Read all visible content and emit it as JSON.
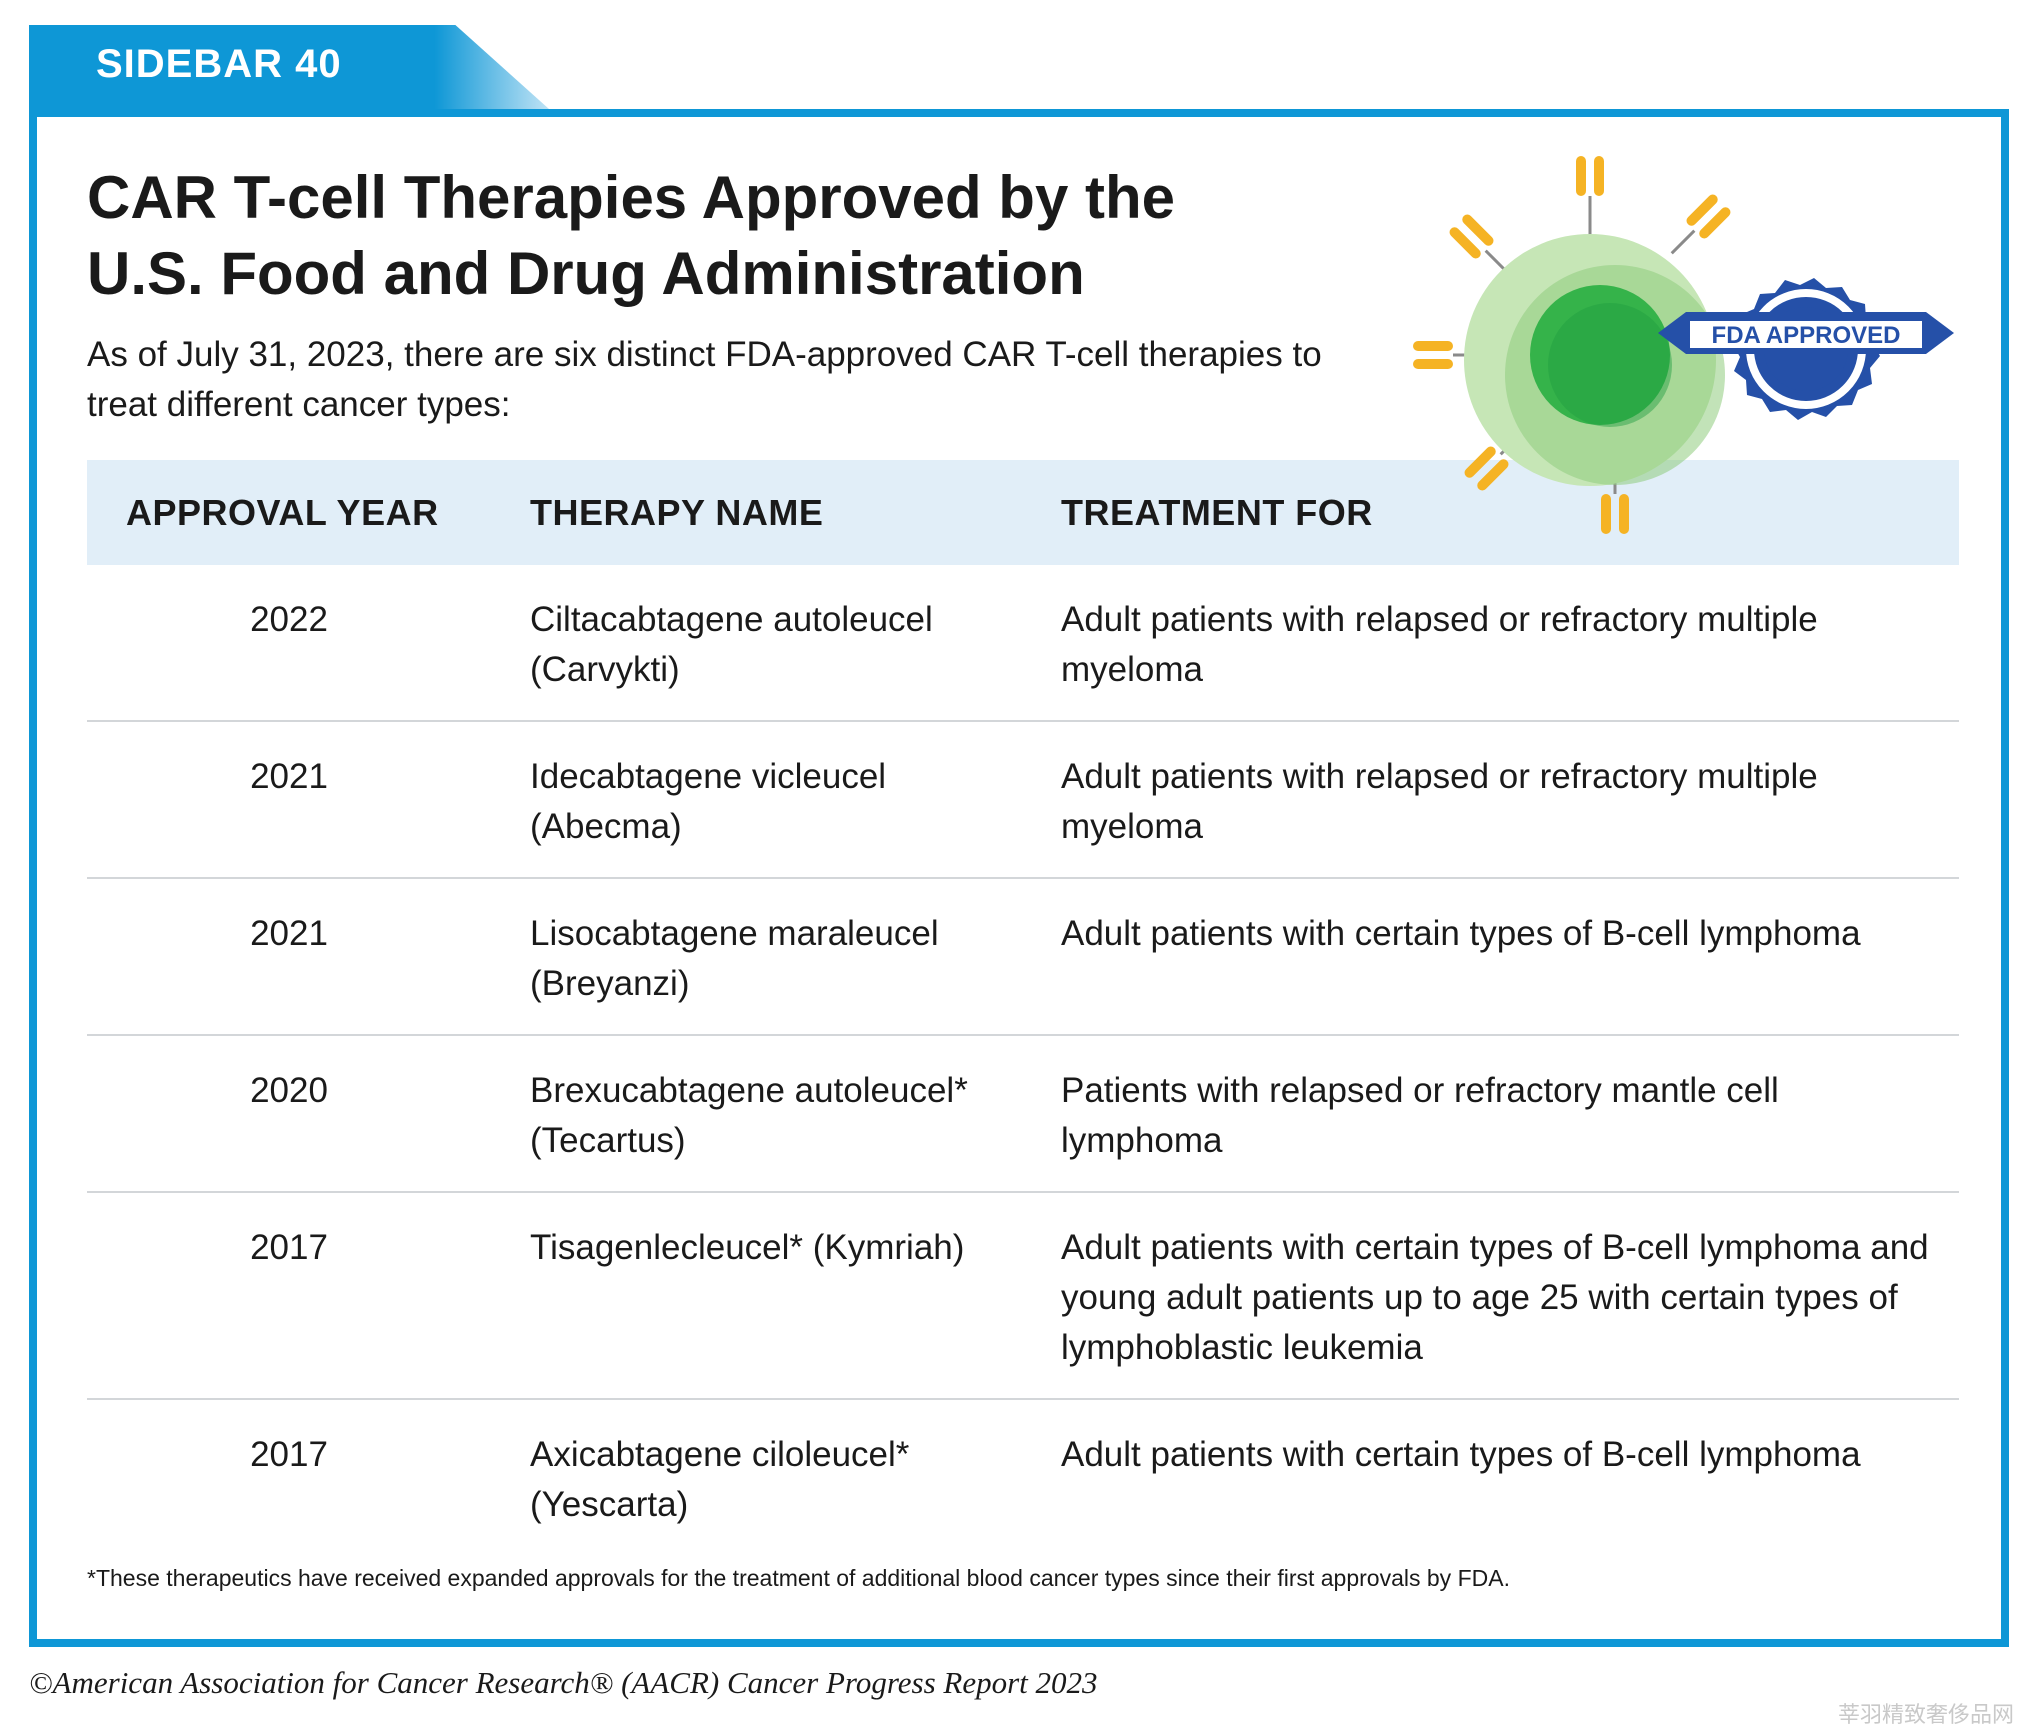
{
  "sidebar_label": "SIDEBAR 40",
  "title_line1": "CAR T-cell Therapies Approved by the",
  "title_line2": "U.S. Food and Drug Administration",
  "intro": "As of July 31, 2023, there are six distinct FDA-approved CAR T-cell therapies to treat different cancer types:",
  "badge_text": "FDA APPROVED",
  "colors": {
    "accent_blue": "#0e97d6",
    "header_bg": "#e1eef8",
    "badge_blue": "#2550a8",
    "cell_green": "#8fcc7e",
    "nucleus_green": "#35b34a",
    "receptor_yellow": "#f5b324"
  },
  "table": {
    "headers": [
      "APPROVAL YEAR",
      "THERAPY NAME",
      "TREATMENT FOR"
    ],
    "rows": [
      {
        "year": "2022",
        "name": "Ciltacabtagene autoleucel (Carvykti)",
        "treatment": "Adult patients with relapsed or refractory multiple myeloma"
      },
      {
        "year": "2021",
        "name": "Idecabtagene vicleucel (Abecma)",
        "treatment": "Adult patients with relapsed or refractory multiple myeloma"
      },
      {
        "year": "2021",
        "name": "Lisocabtagene maraleucel (Breyanzi)",
        "treatment": "Adult patients with certain types of B-cell lymphoma"
      },
      {
        "year": "2020",
        "name": "Brexucabtagene autoleucel* (Tecartus)",
        "treatment": "Patients with relapsed or refractory mantle cell lymphoma"
      },
      {
        "year": "2017",
        "name": "Tisagenlecleucel* (Kymriah)",
        "treatment": "Adult patients with certain types of B-cell lymphoma and young adult patients up to age 25 with certain types of lymphoblastic leukemia"
      },
      {
        "year": "2017",
        "name": "Axicabtagene ciloleucel* (Yescarta)",
        "treatment": "Adult patients with certain types of B-cell lymphoma"
      }
    ]
  },
  "footnote": "*These therapeutics have received expanded approvals for the treatment of additional blood cancer types since their first approvals by FDA.",
  "copyright": "©American Association for Cancer Research® (AACR) Cancer Progress Report 2023",
  "watermark": "莘羽精致奢侈品网"
}
